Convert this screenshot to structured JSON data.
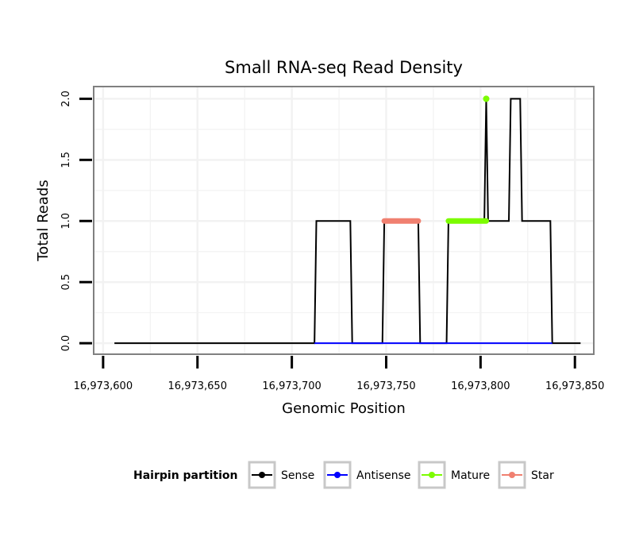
{
  "chart_data": {
    "type": "line",
    "title": "Small RNA-seq Read Density",
    "xlabel": "Genomic Position",
    "ylabel": "Total Reads",
    "xlim": [
      16973595,
      16973860
    ],
    "ylim": [
      -0.09,
      2.1
    ],
    "x_ticks": [
      16973600,
      16973650,
      16973700,
      16973750,
      16973800,
      16973850
    ],
    "x_tick_labels": [
      "16,973,600",
      "16,973,650",
      "16,973,700",
      "16,973,750",
      "16,973,800",
      "16,973,850"
    ],
    "y_ticks": [
      0,
      0.5,
      1,
      1.5,
      2
    ],
    "y_tick_labels": [
      "0.0",
      "0.5",
      "1.0",
      "1.5",
      "2.0"
    ],
    "grid": true,
    "legend": {
      "title": "Hairpin partition",
      "position": "bottom",
      "entries": [
        "Sense",
        "Antisense",
        "Mature",
        "Star"
      ]
    },
    "series": [
      {
        "name": "Sense",
        "color": "#000000",
        "x": [
          16973606,
          16973712,
          16973713,
          16973731,
          16973732,
          16973748,
          16973749,
          16973767,
          16973768,
          16973782,
          16973783,
          16973802,
          16973803,
          16973804,
          16973805,
          16973815,
          16973816,
          16973821,
          16973822,
          16973837,
          16973838,
          16973853
        ],
        "y": [
          0,
          0,
          1,
          1,
          0,
          0,
          1,
          1,
          0,
          0,
          1,
          1,
          2,
          1,
          1,
          1,
          2,
          2,
          1,
          1,
          0,
          0
        ]
      },
      {
        "name": "Antisense",
        "color": "#0000ff",
        "x": [
          16973712,
          16973838
        ],
        "y": [
          0,
          0
        ]
      },
      {
        "name": "Mature",
        "color": "#7cfc00",
        "x": [
          16973783,
          16973803
        ],
        "y": [
          1,
          1
        ],
        "extra_points": [
          {
            "x": 16973803,
            "y": 2
          }
        ]
      },
      {
        "name": "Star",
        "color": "#f08070",
        "x": [
          16973749,
          16973767
        ],
        "y": [
          1,
          1
        ]
      }
    ]
  }
}
